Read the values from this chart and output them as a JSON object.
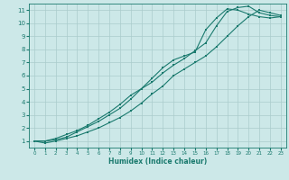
{
  "xlabel": "Humidex (Indice chaleur)",
  "bg_color": "#cce8e8",
  "grid_color": "#aacccc",
  "line_color": "#1a7a6e",
  "xlim": [
    -0.5,
    23.5
  ],
  "ylim": [
    0.5,
    11.5
  ],
  "xticks": [
    0,
    1,
    2,
    3,
    4,
    5,
    6,
    7,
    8,
    9,
    10,
    11,
    12,
    13,
    14,
    15,
    16,
    17,
    18,
    19,
    20,
    21,
    22,
    23
  ],
  "yticks": [
    1,
    2,
    3,
    4,
    5,
    6,
    7,
    8,
    9,
    10,
    11
  ],
  "series1_x": [
    0,
    1,
    2,
    3,
    4,
    5,
    6,
    7,
    8,
    9,
    10,
    11,
    12,
    13,
    14,
    15,
    16,
    17,
    18,
    19,
    20,
    21,
    22,
    23
  ],
  "series1_y": [
    1.0,
    0.85,
    1.0,
    1.2,
    1.4,
    1.7,
    2.0,
    2.4,
    2.8,
    3.3,
    3.9,
    4.6,
    5.2,
    6.0,
    6.5,
    7.0,
    7.5,
    8.2,
    9.0,
    9.8,
    10.5,
    11.0,
    10.8,
    10.6
  ],
  "series2_x": [
    0,
    1,
    2,
    3,
    4,
    5,
    6,
    7,
    8,
    9,
    10,
    11,
    12,
    13,
    14,
    15,
    16,
    17,
    18,
    19,
    20,
    21,
    22,
    23
  ],
  "series2_y": [
    1.0,
    1.0,
    1.1,
    1.3,
    1.7,
    2.1,
    2.5,
    3.0,
    3.5,
    4.2,
    5.0,
    5.8,
    6.6,
    7.2,
    7.5,
    7.8,
    9.5,
    10.4,
    11.1,
    11.0,
    10.7,
    10.5,
    10.4,
    10.5
  ],
  "series3_x": [
    0,
    1,
    2,
    3,
    4,
    5,
    6,
    7,
    8,
    9,
    10,
    11,
    12,
    13,
    14,
    15,
    16,
    17,
    18,
    19,
    20,
    21,
    22,
    23
  ],
  "series3_y": [
    1.0,
    1.0,
    1.2,
    1.5,
    1.8,
    2.2,
    2.7,
    3.2,
    3.8,
    4.5,
    5.0,
    5.5,
    6.2,
    6.8,
    7.3,
    7.9,
    8.5,
    9.8,
    10.9,
    11.2,
    11.3,
    10.8,
    10.6,
    10.5
  ]
}
